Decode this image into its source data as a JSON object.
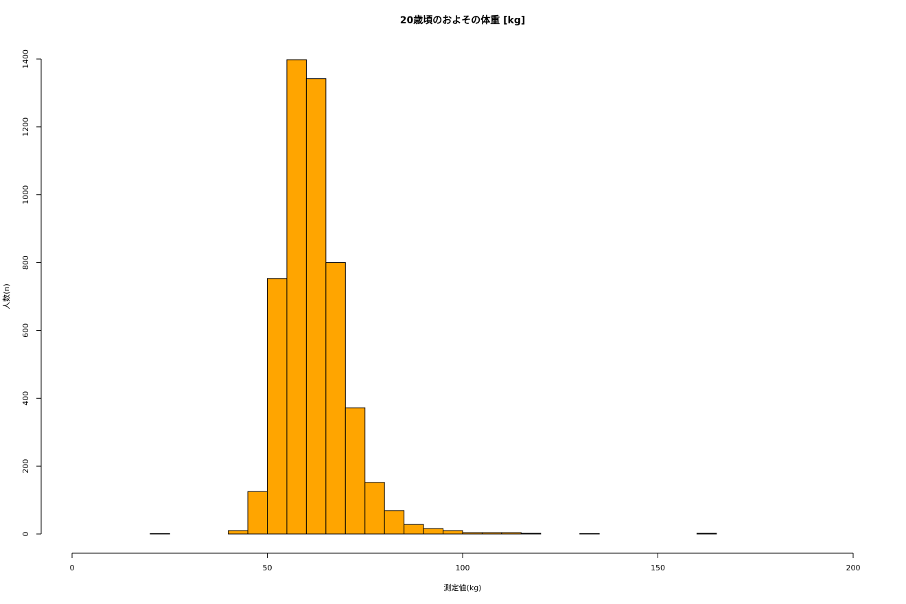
{
  "chart_data": {
    "type": "histogram",
    "title": "20歳頃のおよその体重 [kg]",
    "x_label": "測定値(kg)",
    "y_label": "人数(n)",
    "bins": [
      20,
      25,
      30,
      35,
      40,
      45,
      50,
      55,
      60,
      65,
      70,
      75,
      80,
      85,
      90,
      95,
      100,
      105,
      110,
      115,
      120,
      125,
      130,
      135,
      140,
      145,
      150,
      155,
      160,
      165,
      170,
      175,
      180
    ],
    "values": [
      1,
      0,
      0,
      0,
      10,
      125,
      753,
      1398,
      1342,
      800,
      372,
      152,
      69,
      28,
      16,
      10,
      4,
      4,
      4,
      2,
      0,
      0,
      1,
      0,
      0,
      0,
      0,
      0,
      2,
      0,
      0,
      0
    ],
    "color": "#ffa500",
    "xlim": [
      0,
      200
    ],
    "xticks": [
      0,
      50,
      100,
      150,
      200
    ],
    "ylim": [
      0,
      1400
    ],
    "yticks": [
      0,
      200,
      400,
      600,
      800,
      1000,
      1200,
      1400
    ]
  }
}
